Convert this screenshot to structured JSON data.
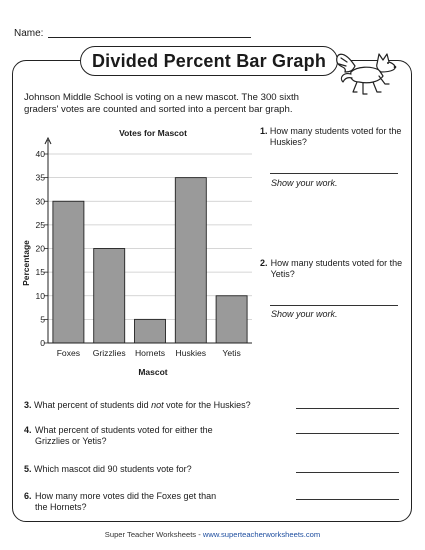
{
  "header": {
    "name_label": "Name:"
  },
  "title": "Divided Percent Bar Graph",
  "intro": "Johnson Middle School is voting on a new mascot. The 300 sixth graders' votes are counted and sorted into a percent bar graph.",
  "chart_data": {
    "type": "bar",
    "title": "Votes for Mascot",
    "xlabel": "Mascot",
    "ylabel": "Percentage",
    "categories": [
      "Foxes",
      "Grizzlies",
      "Hornets",
      "Huskies",
      "Yetis"
    ],
    "values": [
      30,
      20,
      5,
      35,
      10
    ],
    "ylim": [
      0,
      40
    ],
    "yticks": [
      "0",
      "5",
      "10",
      "15",
      "20",
      "25",
      "30",
      "35",
      "40"
    ],
    "grid": true,
    "bar_color": "#9a9a9a"
  },
  "questions": [
    {
      "num": "1.",
      "text": "How many students voted for the Huskies?",
      "show_work": "Show your work."
    },
    {
      "num": "2.",
      "text": "How many students voted for the Yetis?",
      "show_work": "Show your work."
    },
    {
      "num": "3.",
      "pre": "What percent of students did ",
      "em": "not",
      "post": " vote for the Huskies?"
    },
    {
      "num": "4.",
      "text": "What percent of students voted for either the Grizzlies or Yetis?"
    },
    {
      "num": "5.",
      "text": "Which mascot did 90 students vote for?"
    },
    {
      "num": "6.",
      "text": "How many more votes did the Foxes get than the Hornets?"
    }
  ],
  "footer": {
    "brand": "Super Teacher Worksheets",
    "separator": " - ",
    "url": "www.superteacherworksheets.com"
  },
  "icons": {
    "mascot": "flying-husky-icon"
  }
}
